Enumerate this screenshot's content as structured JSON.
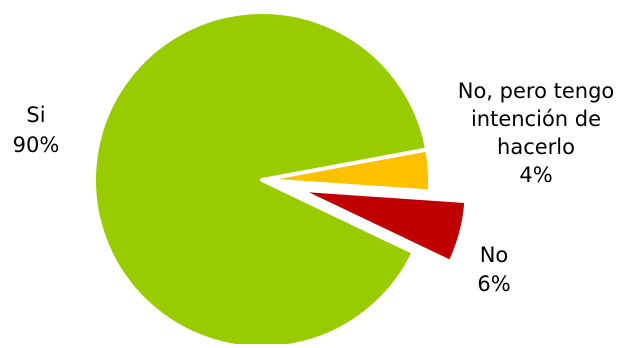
{
  "chart_data": {
    "type": "pie",
    "title": "",
    "legend": "none",
    "slices": [
      {
        "label": "Si",
        "value": 90,
        "value_label": "90%",
        "color": "#99cc00",
        "exploded": false
      },
      {
        "label": "No, pero tengo intención de hacerlo",
        "label_lines": [
          "No, pero tengo",
          "intención de",
          "hacerlo"
        ],
        "value": 4,
        "value_label": "4%",
        "color": "#ffc000",
        "exploded": false
      },
      {
        "label": "No",
        "value": 6,
        "value_label": "6%",
        "color": "#c00000",
        "exploded": true
      }
    ]
  }
}
